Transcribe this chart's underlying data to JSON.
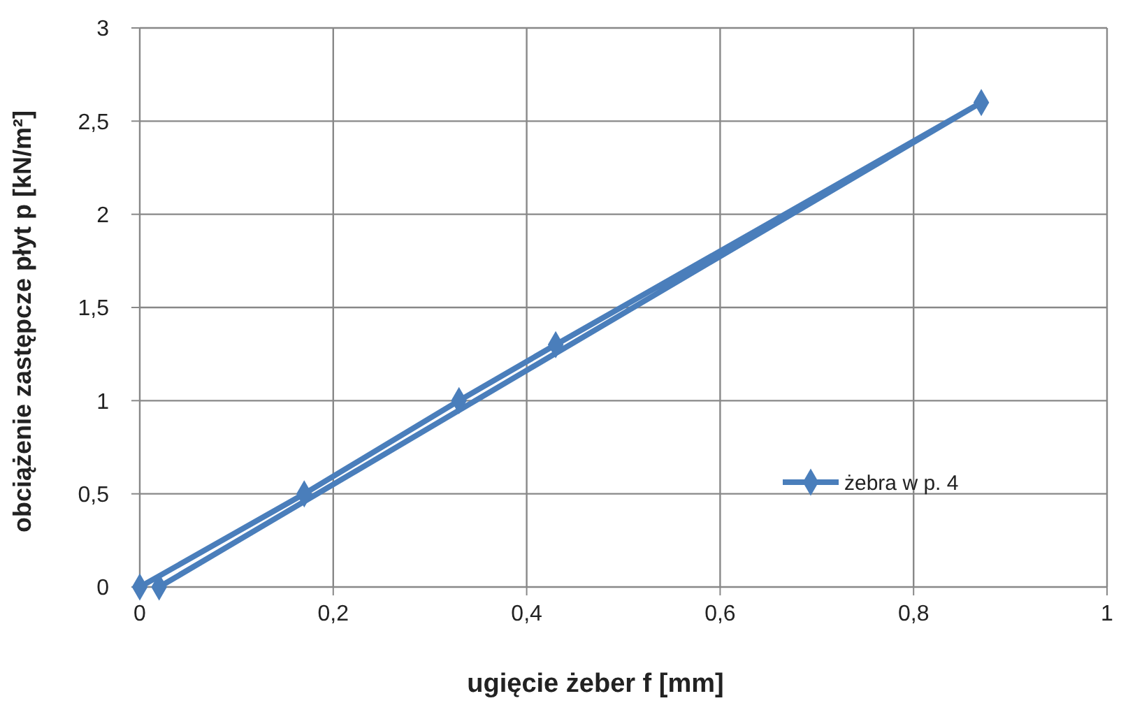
{
  "chart_data": {
    "type": "line",
    "xlabel": "ugięcie żeber f [mm]",
    "ylabel": "obciążenie zastępcze płyt  p  [kN/m²]",
    "series": [
      {
        "name": "żebra w p. 4",
        "color": "#4a7ebb",
        "x": [
          0,
          0.17,
          0.33,
          0.43,
          0.87,
          0.02
        ],
        "values": [
          0,
          0.5,
          1,
          1.3,
          2.6,
          0
        ]
      }
    ],
    "xlim": [
      0,
      1
    ],
    "xticks": [
      0,
      {
        "value": 0.2,
        "label": "0,2"
      },
      {
        "value": 0.4,
        "label": "0,4"
      },
      {
        "value": 0.6,
        "label": "0,6"
      },
      {
        "value": 0.8,
        "label": "0,8"
      },
      1
    ],
    "ylim": [
      0,
      3
    ],
    "yticks": [
      0,
      {
        "value": 0.5,
        "label": "0,5"
      },
      1,
      {
        "value": 1.5,
        "label": "1,5"
      },
      2,
      {
        "value": 2.5,
        "label": "2,5"
      },
      3
    ],
    "grid": true,
    "legend": "right",
    "marker": "diamond",
    "line_style": "solid"
  }
}
